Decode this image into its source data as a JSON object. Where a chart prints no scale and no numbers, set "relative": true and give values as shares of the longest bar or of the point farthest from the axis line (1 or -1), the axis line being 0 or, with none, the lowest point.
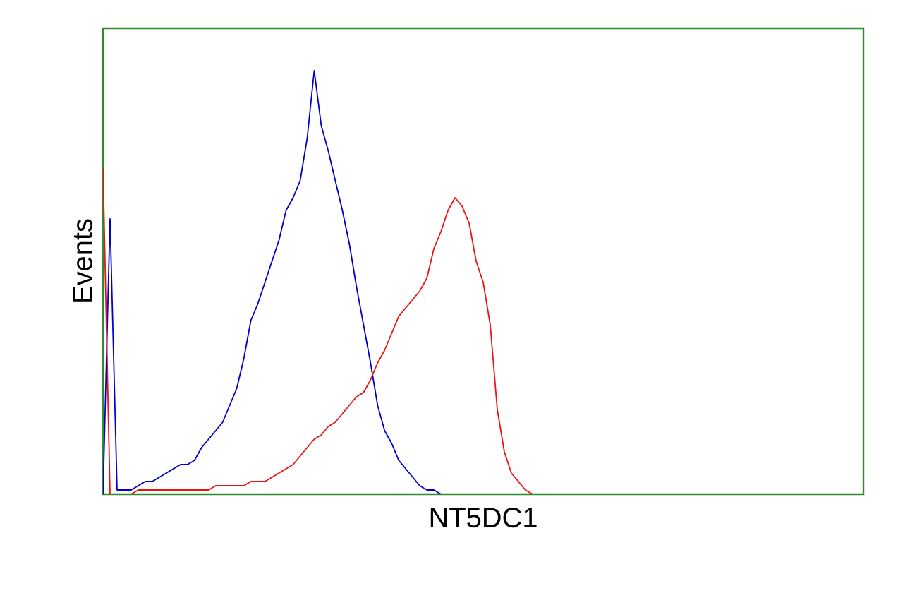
{
  "chart_data": {
    "type": "line",
    "relative": true,
    "xlabel": "NT5DC1",
    "ylabel": "Events",
    "categories": [
      null,
      null,
      null,
      null,
      null,
      null,
      null,
      null,
      null,
      null,
      null,
      null,
      null,
      null,
      null,
      null,
      null,
      null,
      null,
      null,
      null,
      null,
      null,
      null,
      null,
      null,
      null,
      null,
      null,
      null,
      null,
      null,
      null,
      null,
      null,
      null,
      null,
      null,
      null,
      null,
      null,
      null,
      null,
      null,
      null,
      null,
      null,
      null,
      null,
      null,
      null,
      null,
      null,
      null,
      null,
      null,
      null,
      null,
      null,
      null,
      null,
      null,
      null,
      null,
      null,
      null,
      null,
      null,
      null,
      null,
      null,
      null,
      null,
      null,
      null,
      null,
      null,
      null,
      null,
      null,
      null,
      null,
      null,
      null,
      null,
      null,
      null,
      null,
      null,
      null,
      null,
      null,
      null,
      null,
      null,
      null,
      null,
      null,
      null,
      null,
      null,
      null,
      null,
      null,
      null,
      null,
      null,
      null,
      null
    ],
    "series": [
      {
        "color": "#0000cc",
        "values": [
          0,
          0.65,
          0.01,
          0.01,
          0.01,
          0.02,
          0.03,
          0.03,
          0.04,
          0.05,
          0.06,
          0.07,
          0.07,
          0.08,
          0.11,
          0.13,
          0.15,
          0.17,
          0.21,
          0.25,
          0.32,
          0.41,
          0.45,
          0.5,
          0.55,
          0.6,
          0.67,
          0.7,
          0.74,
          0.84,
          1,
          0.87,
          0.81,
          0.74,
          0.67,
          0.59,
          0.49,
          0.4,
          0.31,
          0.21,
          0.15,
          0.12,
          0.08,
          0.06,
          0.04,
          0.02,
          0.01,
          0.01,
          0,
          null,
          null,
          null,
          null,
          null,
          null,
          null,
          null,
          null,
          null,
          null,
          null,
          null,
          null,
          null,
          null,
          null,
          null,
          null,
          null,
          null,
          null,
          null,
          null,
          null,
          null,
          null,
          null,
          null,
          null,
          null,
          null,
          null,
          null,
          null,
          null,
          null,
          null,
          null,
          null,
          null,
          null,
          null,
          null,
          null,
          null,
          null,
          null,
          null,
          null,
          null,
          null,
          null,
          null,
          null,
          null,
          null,
          null,
          null,
          null
        ]
      },
      {
        "color": "#ee1111",
        "values": [
          0.77,
          0,
          0,
          0,
          0,
          0.01,
          0.01,
          0.01,
          0.01,
          0.01,
          0.01,
          0.01,
          0.01,
          0.01,
          0.01,
          0.01,
          0.02,
          0.02,
          0.02,
          0.02,
          0.02,
          0.03,
          0.03,
          0.03,
          0.04,
          0.05,
          0.06,
          0.07,
          0.09,
          0.11,
          0.13,
          0.14,
          0.16,
          0.17,
          0.19,
          0.21,
          0.23,
          0.24,
          0.27,
          0.31,
          0.34,
          0.38,
          0.42,
          0.44,
          0.46,
          0.48,
          0.51,
          0.58,
          0.62,
          0.67,
          0.7,
          0.68,
          0.64,
          0.55,
          0.5,
          0.4,
          0.2,
          0.1,
          0.05,
          0.03,
          0.01,
          0,
          null,
          null,
          null,
          null,
          null,
          null,
          null,
          null,
          null,
          null,
          null,
          null,
          null,
          null,
          null,
          null,
          null,
          null,
          null,
          null,
          null,
          null,
          null,
          null,
          null,
          null,
          null,
          null,
          null,
          null,
          null,
          null,
          null,
          null,
          null,
          null,
          null,
          null,
          null,
          null,
          null,
          null,
          null,
          null,
          null,
          null,
          null
        ]
      }
    ]
  }
}
